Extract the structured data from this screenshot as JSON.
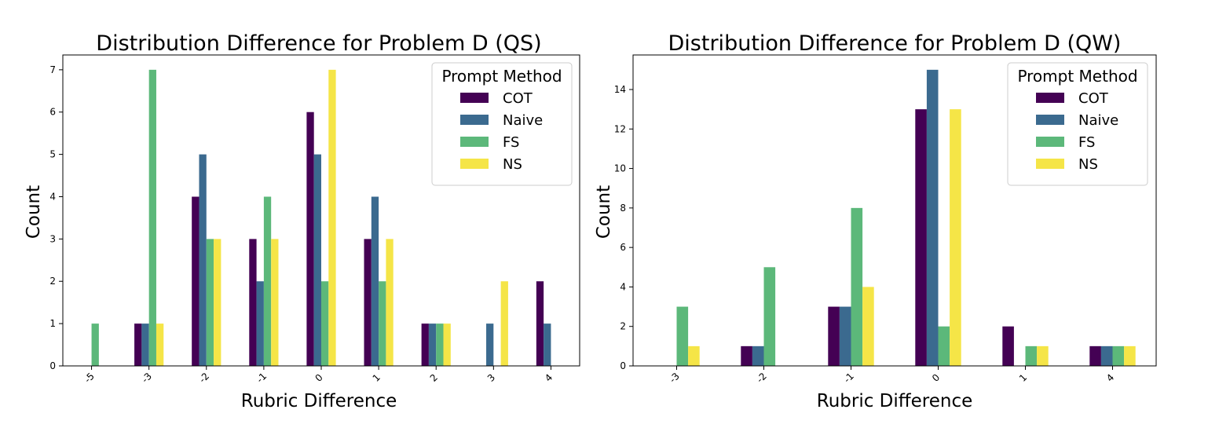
{
  "chart_data": [
    {
      "type": "bar",
      "title": "Distribution Difference for Problem D (QS)",
      "xlabel": "Rubric Difference",
      "ylabel": "Count",
      "categories": [
        "-5",
        "-3",
        "-2",
        "-1",
        "0",
        "1",
        "2",
        "3",
        "4"
      ],
      "series": [
        {
          "name": "COT",
          "color": "#440154",
          "values": [
            0,
            1,
            4,
            3,
            6,
            3,
            1,
            0,
            2
          ]
        },
        {
          "name": "Naive",
          "color": "#3b6a8f",
          "values": [
            0,
            1,
            5,
            2,
            5,
            4,
            1,
            1,
            1
          ]
        },
        {
          "name": "FS",
          "color": "#5cb87a",
          "values": [
            1,
            7,
            3,
            4,
            2,
            2,
            1,
            0,
            0
          ]
        },
        {
          "name": "NS",
          "color": "#f5e547",
          "values": [
            0,
            1,
            3,
            3,
            7,
            3,
            1,
            2,
            0
          ]
        }
      ],
      "ylim": [
        0,
        7.35
      ],
      "yticks": [
        0,
        1,
        2,
        3,
        4,
        5,
        6,
        7
      ],
      "legend": {
        "title": "Prompt Method",
        "placement": "top-right"
      },
      "grid": false
    },
    {
      "type": "bar",
      "title": "Distribution Difference for Problem D (QW)",
      "xlabel": "Rubric Difference",
      "ylabel": "Count",
      "categories": [
        "-3",
        "-2",
        "-1",
        "0",
        "1",
        "4"
      ],
      "series": [
        {
          "name": "COT",
          "color": "#440154",
          "values": [
            0,
            1,
            3,
            13,
            2,
            1
          ]
        },
        {
          "name": "Naive",
          "color": "#3b6a8f",
          "values": [
            0,
            1,
            3,
            15,
            0,
            1
          ]
        },
        {
          "name": "FS",
          "color": "#5cb87a",
          "values": [
            3,
            5,
            8,
            2,
            1,
            1
          ]
        },
        {
          "name": "NS",
          "color": "#f5e547",
          "values": [
            1,
            0,
            4,
            13,
            1,
            1
          ]
        }
      ],
      "ylim": [
        0,
        15.75
      ],
      "yticks": [
        0,
        2,
        4,
        6,
        8,
        10,
        12,
        14
      ],
      "legend": {
        "title": "Prompt Method",
        "placement": "top-right"
      },
      "grid": false
    }
  ]
}
